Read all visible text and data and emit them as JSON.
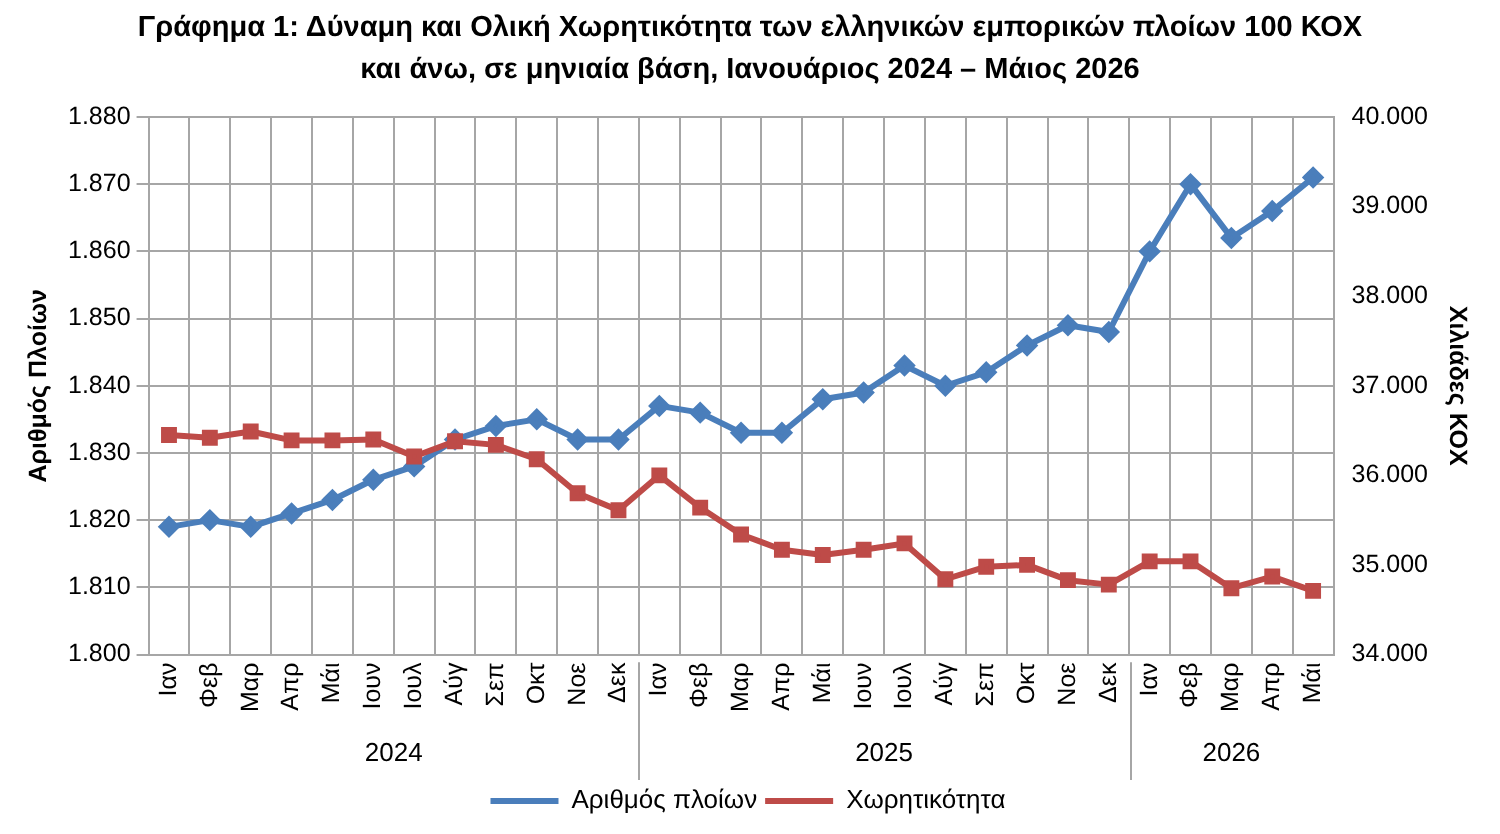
{
  "chart_data": {
    "type": "line",
    "title": "Γράφημα 1: Δύναμη και Ολική Χωρητικότητα των ελληνικών εμπορικών πλοίων 100 ΚΟΧ και άνω, σε μηνιαία βάση, Ιανουάριος 2024 – Μάιος 2026",
    "categories": [
      "Ιαν",
      "Φεβ",
      "Μαρ",
      "Απρ",
      "Μάι",
      "Ιουν",
      "Ιουλ",
      "Αύγ",
      "Σεπ",
      "Οκτ",
      "Νοε",
      "Δεκ",
      "Ιαν",
      "Φεβ",
      "Μαρ",
      "Απρ",
      "Μάι",
      "Ιουν",
      "Ιουλ",
      "Αύγ",
      "Σεπ",
      "Οκτ",
      "Νοε",
      "Δεκ",
      "Ιαν",
      "Φεβ",
      "Μαρ",
      "Απρ",
      "Μάι"
    ],
    "annotations": [
      "2024",
      "2025",
      "2026"
    ],
    "ylabel": "Αριθμός Πλοίων",
    "y2label": "Χιλιάδες ΚΟΧ",
    "series": [
      {
        "name": "Αριθμός πλοίων",
        "color": "#4a7ebb",
        "marker": "diamond",
        "values": [
          1819,
          1820,
          1819,
          1821,
          1823,
          1826,
          1828,
          1832,
          1834,
          1835,
          1832,
          1832,
          1837,
          1836,
          1833,
          1833,
          1838,
          1839,
          1843,
          1840,
          1842,
          1846,
          1849,
          1848,
          1860,
          1870,
          1862,
          1866,
          1871
        ]
      },
      {
        "name": "Χωρητικότητα",
        "color": "#be4b48",
        "marker": "square",
        "axis": "y2",
        "values": [
          36450,
          36420,
          36490,
          36390,
          36390,
          36400,
          36210,
          36380,
          36340,
          36180,
          35800,
          35610,
          36000,
          35640,
          35340,
          35170,
          35110,
          35170,
          35240,
          34840,
          34980,
          35000,
          34830,
          34780,
          35040,
          35040,
          34740,
          34870,
          34710
        ]
      }
    ],
    "ylim": [
      1800,
      1880
    ],
    "yticks": [
      {
        "value": 1800,
        "label": "1.800"
      },
      {
        "value": 1810,
        "label": "1.810"
      },
      {
        "value": 1820,
        "label": "1.820"
      },
      {
        "value": 1830,
        "label": "1.830"
      },
      {
        "value": 1840,
        "label": "1.840"
      },
      {
        "value": 1850,
        "label": "1.850"
      },
      {
        "value": 1860,
        "label": "1.860"
      },
      {
        "value": 1870,
        "label": "1.870"
      },
      {
        "value": 1880,
        "label": "1.880"
      }
    ],
    "y2lim": [
      34000,
      40000
    ],
    "y2ticks": [
      {
        "value": 34000,
        "label": "34.000"
      },
      {
        "value": 35000,
        "label": "35.000"
      },
      {
        "value": 36000,
        "label": "36.000"
      },
      {
        "value": 37000,
        "label": "37.000"
      },
      {
        "value": 38000,
        "label": "38.000"
      },
      {
        "value": 39000,
        "label": "39.000"
      },
      {
        "value": 40000,
        "label": "40.000"
      }
    ],
    "grid": true,
    "legend": "bottom",
    "line_style": "solid"
  }
}
